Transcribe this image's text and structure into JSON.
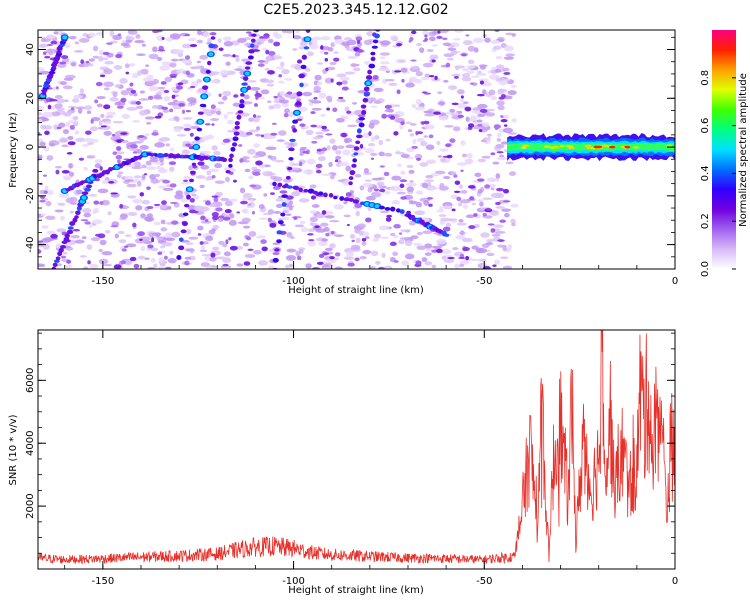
{
  "title": "C2E5.2023.345.12.12.G02",
  "chart_data": [
    {
      "type": "heatmap",
      "xlabel": "Height of straight line (km)",
      "ylabel": "Frequency (Hz)",
      "xlim": [
        -167,
        0
      ],
      "ylim": [
        -50,
        48
      ],
      "xticks": [
        -150,
        -100,
        -50,
        0
      ],
      "yticks": [
        -40,
        -20,
        0,
        20,
        40
      ],
      "colorbar": {
        "label": "Normalized spectral amplitude",
        "range": [
          0.0,
          1.0
        ],
        "ticks": [
          0.0,
          0.2,
          0.4,
          0.6,
          0.8
        ],
        "colors": [
          "#ffffff",
          "#d8b8f8",
          "#a060f0",
          "#7000e0",
          "#3000ff",
          "#0070ff",
          "#00e0ff",
          "#00ff80",
          "#40ff00",
          "#e0ff00",
          "#ffa000",
          "#ff2000",
          "#ff0080"
        ]
      },
      "strong_band": {
        "x": [
          -44,
          0
        ],
        "frequency": 0
      },
      "features": [
        {
          "x": [
            -166,
            -160
          ],
          "y": [
            20,
            45
          ]
        },
        {
          "x": [
            -163,
            -152
          ],
          "y": [
            -50,
            -10
          ]
        },
        {
          "x": [
            -130,
            -121
          ],
          "y": [
            -45,
            45
          ]
        },
        {
          "x": [
            -117,
            -110
          ],
          "y": [
            -10,
            48
          ]
        },
        {
          "x": [
            -105,
            -96
          ],
          "y": [
            -50,
            48
          ]
        },
        {
          "x": [
            -85,
            -78
          ],
          "y": [
            -15,
            48
          ]
        },
        {
          "x": [
            -160,
            -139
          ],
          "y": [
            -18,
            -3
          ]
        },
        {
          "x": [
            -138,
            -118
          ],
          "y": [
            -3,
            -5
          ]
        },
        {
          "x": [
            -105,
            -70
          ],
          "y": [
            -15,
            -27
          ]
        },
        {
          "x": [
            -70,
            -60
          ],
          "y": [
            -28,
            -36
          ]
        }
      ]
    },
    {
      "type": "line",
      "xlabel": "Height of straight line (km)",
      "ylabel": "SNR (10 * v/v)",
      "xlim": [
        -167,
        0
      ],
      "ylim": [
        0,
        7600
      ],
      "xticks": [
        -150,
        -100,
        -50,
        0
      ],
      "yticks": [
        2000,
        4000,
        6000
      ],
      "color": "#e8302a",
      "x": [
        -167,
        -160,
        -150,
        -140,
        -130,
        -120,
        -115,
        -110,
        -105,
        -100,
        -95,
        -90,
        -80,
        -70,
        -60,
        -50,
        -42,
        -40,
        -38,
        -36,
        -35,
        -34,
        -33,
        -32,
        -30,
        -28,
        -27,
        -26,
        -24,
        -22,
        -20,
        -19,
        -18,
        -17,
        -16,
        -14,
        -12,
        -10,
        -9,
        -8,
        -7,
        -6,
        -4,
        -2,
        -1,
        0
      ],
      "y": [
        350,
        300,
        330,
        380,
        420,
        480,
        600,
        700,
        720,
        650,
        520,
        450,
        400,
        350,
        330,
        300,
        400,
        2000,
        3800,
        1500,
        5600,
        2500,
        300,
        3200,
        4600,
        2200,
        5500,
        800,
        4400,
        2400,
        3600,
        7400,
        3000,
        5000,
        2600,
        3800,
        2600,
        3200,
        5900,
        4600,
        5800,
        3800,
        5200,
        1900,
        4200,
        3000
      ]
    }
  ]
}
